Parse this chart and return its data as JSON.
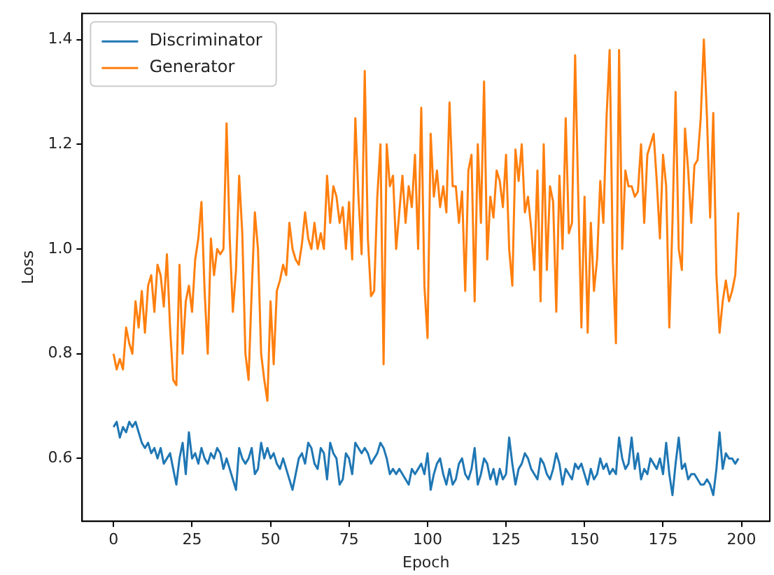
{
  "chart_data": {
    "type": "line",
    "xlabel": "Epoch",
    "ylabel": "Loss",
    "x": [
      0,
      1,
      2,
      3,
      4,
      5,
      6,
      7,
      8,
      9,
      10,
      11,
      12,
      13,
      14,
      15,
      16,
      17,
      18,
      19,
      20,
      21,
      22,
      23,
      24,
      25,
      26,
      27,
      28,
      29,
      30,
      31,
      32,
      33,
      34,
      35,
      36,
      37,
      38,
      39,
      40,
      41,
      42,
      43,
      44,
      45,
      46,
      47,
      48,
      49,
      50,
      51,
      52,
      53,
      54,
      55,
      56,
      57,
      58,
      59,
      60,
      61,
      62,
      63,
      64,
      65,
      66,
      67,
      68,
      69,
      70,
      71,
      72,
      73,
      74,
      75,
      76,
      77,
      78,
      79,
      80,
      81,
      82,
      83,
      84,
      85,
      86,
      87,
      88,
      89,
      90,
      91,
      92,
      93,
      94,
      95,
      96,
      97,
      98,
      99,
      100,
      101,
      102,
      103,
      104,
      105,
      106,
      107,
      108,
      109,
      110,
      111,
      112,
      113,
      114,
      115,
      116,
      117,
      118,
      119,
      120,
      121,
      122,
      123,
      124,
      125,
      126,
      127,
      128,
      129,
      130,
      131,
      132,
      133,
      134,
      135,
      136,
      137,
      138,
      139,
      140,
      141,
      142,
      143,
      144,
      145,
      146,
      147,
      148,
      149,
      150,
      151,
      152,
      153,
      154,
      155,
      156,
      157,
      158,
      159,
      160,
      161,
      162,
      163,
      164,
      165,
      166,
      167,
      168,
      169,
      170,
      171,
      172,
      173,
      174,
      175,
      176,
      177,
      178,
      179,
      180,
      181,
      182,
      183,
      184,
      185,
      186,
      187,
      188,
      189,
      190,
      191,
      192,
      193,
      194,
      195,
      196,
      197,
      198,
      199
    ],
    "series": [
      {
        "name": "Discriminator",
        "color": "#1f77b4",
        "values": [
          0.66,
          0.67,
          0.64,
          0.66,
          0.65,
          0.67,
          0.66,
          0.67,
          0.65,
          0.63,
          0.62,
          0.63,
          0.61,
          0.62,
          0.6,
          0.62,
          0.59,
          0.6,
          0.61,
          0.58,
          0.55,
          0.6,
          0.63,
          0.57,
          0.65,
          0.6,
          0.61,
          0.59,
          0.62,
          0.6,
          0.59,
          0.61,
          0.6,
          0.62,
          0.61,
          0.58,
          0.6,
          0.58,
          0.56,
          0.54,
          0.62,
          0.6,
          0.59,
          0.6,
          0.62,
          0.57,
          0.58,
          0.63,
          0.6,
          0.62,
          0.6,
          0.61,
          0.59,
          0.58,
          0.6,
          0.58,
          0.56,
          0.54,
          0.57,
          0.6,
          0.61,
          0.59,
          0.63,
          0.62,
          0.59,
          0.58,
          0.62,
          0.61,
          0.56,
          0.63,
          0.61,
          0.6,
          0.55,
          0.56,
          0.61,
          0.6,
          0.57,
          0.63,
          0.62,
          0.61,
          0.62,
          0.61,
          0.59,
          0.6,
          0.61,
          0.63,
          0.62,
          0.6,
          0.57,
          0.58,
          0.57,
          0.58,
          0.57,
          0.56,
          0.55,
          0.58,
          0.57,
          0.58,
          0.59,
          0.57,
          0.61,
          0.54,
          0.57,
          0.59,
          0.6,
          0.57,
          0.55,
          0.58,
          0.55,
          0.56,
          0.59,
          0.6,
          0.57,
          0.56,
          0.58,
          0.62,
          0.55,
          0.57,
          0.6,
          0.59,
          0.56,
          0.58,
          0.55,
          0.58,
          0.56,
          0.57,
          0.64,
          0.59,
          0.55,
          0.58,
          0.59,
          0.61,
          0.6,
          0.58,
          0.57,
          0.56,
          0.6,
          0.59,
          0.57,
          0.56,
          0.58,
          0.61,
          0.59,
          0.55,
          0.58,
          0.57,
          0.56,
          0.59,
          0.58,
          0.59,
          0.57,
          0.55,
          0.58,
          0.56,
          0.57,
          0.6,
          0.58,
          0.59,
          0.57,
          0.58,
          0.57,
          0.64,
          0.6,
          0.58,
          0.59,
          0.64,
          0.58,
          0.61,
          0.56,
          0.58,
          0.57,
          0.6,
          0.59,
          0.58,
          0.6,
          0.57,
          0.63,
          0.57,
          0.53,
          0.59,
          0.64,
          0.58,
          0.59,
          0.56,
          0.57,
          0.57,
          0.56,
          0.55,
          0.55,
          0.56,
          0.55,
          0.53,
          0.58,
          0.65,
          0.58,
          0.61,
          0.6,
          0.6,
          0.59,
          0.6
        ]
      },
      {
        "name": "Generator",
        "color": "#ff7f0e",
        "values": [
          0.8,
          0.77,
          0.79,
          0.77,
          0.85,
          0.82,
          0.8,
          0.9,
          0.85,
          0.92,
          0.84,
          0.93,
          0.95,
          0.88,
          0.97,
          0.95,
          0.89,
          0.99,
          0.85,
          0.75,
          0.74,
          0.97,
          0.8,
          0.9,
          0.93,
          0.88,
          0.98,
          1.02,
          1.09,
          0.92,
          0.8,
          1.02,
          0.95,
          1.0,
          0.99,
          1.0,
          1.24,
          1.02,
          0.88,
          0.96,
          1.14,
          1.03,
          0.8,
          0.75,
          0.92,
          1.07,
          1.0,
          0.8,
          0.75,
          0.71,
          0.9,
          0.78,
          0.92,
          0.94,
          0.97,
          0.95,
          1.05,
          1.0,
          0.98,
          0.97,
          1.01,
          1.07,
          1.02,
          1.0,
          1.05,
          1.0,
          1.03,
          1.0,
          1.14,
          1.05,
          1.12,
          1.1,
          1.05,
          1.08,
          1.0,
          1.09,
          0.98,
          1.25,
          1.1,
          0.99,
          1.34,
          1.02,
          0.91,
          0.92,
          1.1,
          1.2,
          0.78,
          1.2,
          1.12,
          1.14,
          1.0,
          1.07,
          1.14,
          1.05,
          1.12,
          1.08,
          1.18,
          1.0,
          1.27,
          0.93,
          0.83,
          1.22,
          1.1,
          1.15,
          1.08,
          1.12,
          1.07,
          1.28,
          1.12,
          1.12,
          1.05,
          1.11,
          0.92,
          1.15,
          1.18,
          0.9,
          1.2,
          1.05,
          1.32,
          0.98,
          1.1,
          1.06,
          1.15,
          1.13,
          1.08,
          1.18,
          1.0,
          0.93,
          1.19,
          1.13,
          1.2,
          1.07,
          1.1,
          1.04,
          0.96,
          1.15,
          0.9,
          1.2,
          0.96,
          1.12,
          1.09,
          0.88,
          1.14,
          1.0,
          1.25,
          1.03,
          1.05,
          1.37,
          1.1,
          0.85,
          1.1,
          0.84,
          1.05,
          0.92,
          0.98,
          1.13,
          1.05,
          1.25,
          1.38,
          0.98,
          0.82,
          1.38,
          1.0,
          1.15,
          1.12,
          1.12,
          1.1,
          1.11,
          1.2,
          1.05,
          1.18,
          1.2,
          1.22,
          1.13,
          1.02,
          1.18,
          1.12,
          0.85,
          1.05,
          1.3,
          1.0,
          0.96,
          1.23,
          1.15,
          1.05,
          1.16,
          1.17,
          1.25,
          1.4,
          1.25,
          1.06,
          1.26,
          0.95,
          0.84,
          0.9,
          0.94,
          0.9,
          0.92,
          0.95,
          1.07
        ]
      }
    ],
    "xlim": [
      -10,
      209
    ],
    "xticks": [
      0,
      25,
      50,
      75,
      100,
      125,
      150,
      175,
      200
    ],
    "ylim": [
      0.48,
      1.45
    ],
    "yticks": [
      0.6,
      0.8,
      {
        "value": 1,
        "label": "1.0"
      },
      1.2,
      1.4
    ],
    "grid": false,
    "legend": "top left",
    "marker": "none",
    "line_style": "solid"
  }
}
